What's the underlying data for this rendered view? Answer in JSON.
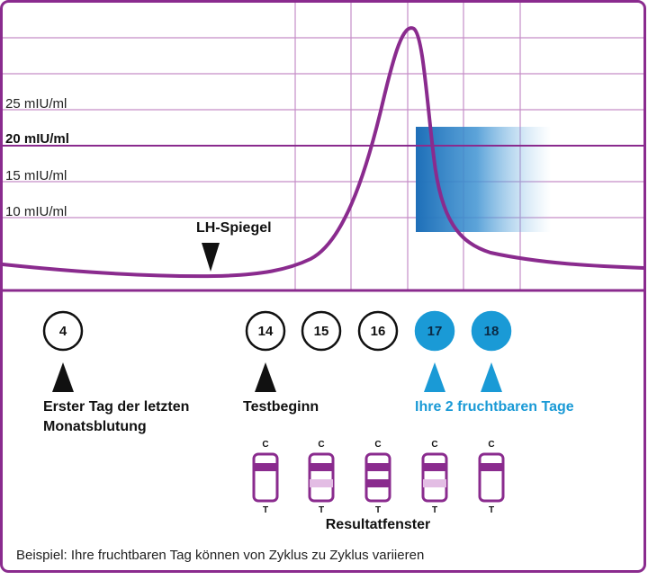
{
  "colors": {
    "accent": "#8a2b8e",
    "grid": "#c58ec7",
    "blue": "#1a9ad6",
    "band": "#1e6fb8",
    "light_band": "#e3bde4"
  },
  "chart": {
    "y_labels": [
      "25 mIU/ml",
      "20 mIU/ml",
      "15 mIU/ml",
      "10 mIU/ml"
    ],
    "lh_label": "LH-Spiegel"
  },
  "days": [
    {
      "num": "4",
      "fertile": false
    },
    {
      "num": "14",
      "fertile": false
    },
    {
      "num": "15",
      "fertile": false
    },
    {
      "num": "16",
      "fertile": false
    },
    {
      "num": "17",
      "fertile": true
    },
    {
      "num": "18",
      "fertile": true
    }
  ],
  "labels": {
    "first_day_line1": "Erster Tag der letzten",
    "first_day_line2": "Monatsblutung",
    "test_start": "Testbeginn",
    "fertile_days": "Ihre 2 fruchtbaren Tage"
  },
  "strips": {
    "c_label": "C",
    "t_label": "T",
    "count": 5,
    "caption": "Resultatfenster",
    "t_line_level": [
      0,
      0.35,
      1,
      0.35,
      0
    ]
  },
  "footer": "Beispiel: Ihre fruchtbaren Tag können von Zyklus zu Zyklus variieren"
}
